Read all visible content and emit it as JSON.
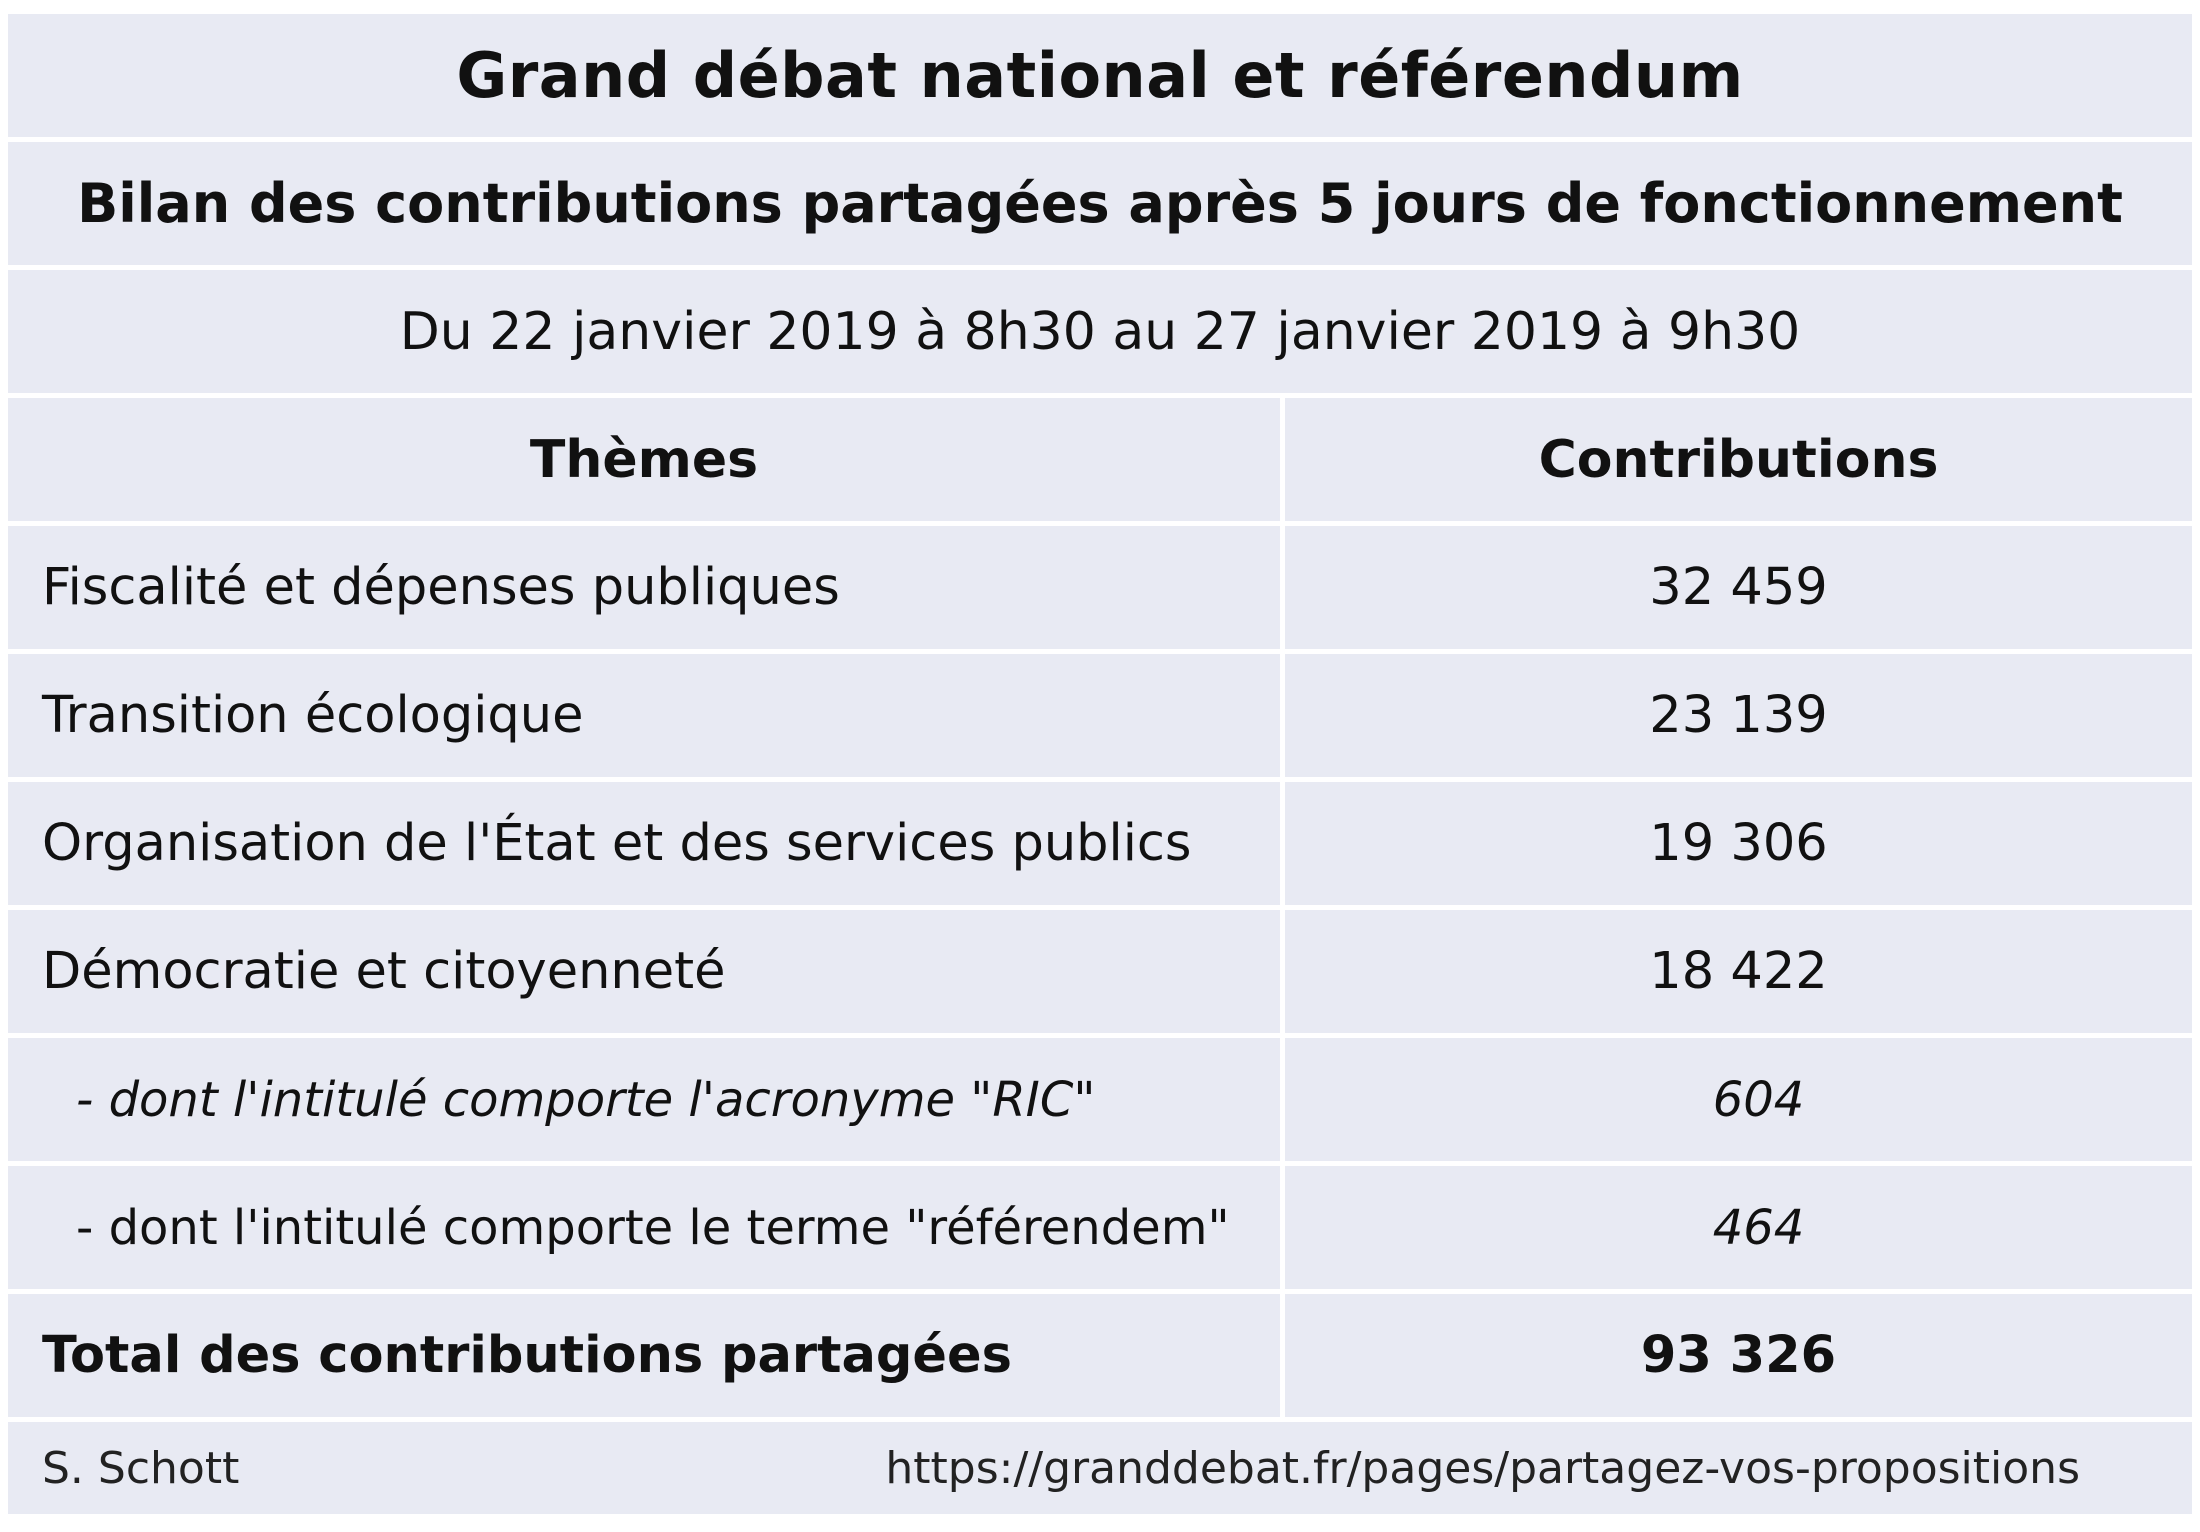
{
  "title": "Grand débat national et référendum",
  "subtitle": "Bilan des contributions partagées après 5 jours de fonctionnement",
  "period": "Du 22 janvier 2019 à 8h30 au 27 janvier 2019 à 9h30",
  "table": {
    "headers": {
      "theme": "Thèmes",
      "contributions": "Contributions"
    },
    "rows": [
      {
        "theme": "Fiscalité et dépenses publiques",
        "value": "32 459"
      },
      {
        "theme": "Transition écologique",
        "value": "23 139"
      },
      {
        "theme": "Organisation de l'État et des services publics",
        "value": "19 306"
      },
      {
        "theme": "Démocratie et citoyenneté",
        "value": "18 422"
      },
      {
        "theme": "- dont l'intitulé comporte l'acronyme \"RIC\"",
        "value": "604"
      },
      {
        "theme": "- dont l'intitulé comporte le terme \"référendem\"",
        "value": "464"
      }
    ],
    "total": {
      "label": "Total des contributions  partagées",
      "value": "93 326"
    }
  },
  "footer": {
    "author": "S. Schott",
    "source": "https://granddebat.fr/pages/partagez-vos-propositions"
  }
}
